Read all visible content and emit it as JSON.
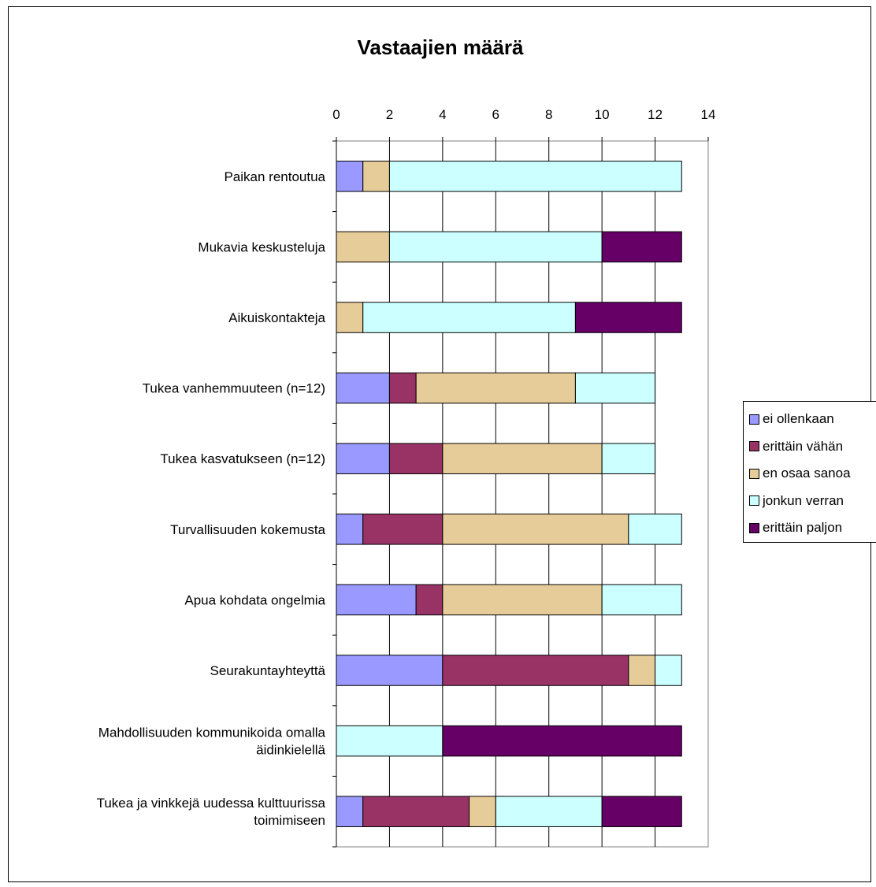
{
  "chart_data": {
    "type": "bar",
    "orientation": "horizontal",
    "stacked": true,
    "title": "Vastaajien määrä",
    "xlim": [
      0,
      14
    ],
    "x_ticks": [
      0,
      2,
      4,
      6,
      8,
      10,
      12,
      14
    ],
    "categories": [
      "Paikan rentoutua",
      "Mukavia keskusteluja",
      "Aikuiskontakteja",
      "Tukea vanhemmuuteen (n=12)",
      "Tukea kasvatukseen (n=12)",
      "Turvallisuuden kokemusta",
      "Apua kohdata ongelmia",
      "Seurakuntayhteyttä",
      "Mahdollisuuden kommunikoida omalla äidinkielellä",
      "Tukea ja vinkkejä uudessa kulttuurissa toimimiseen"
    ],
    "series": [
      {
        "name": "ei ollenkaan",
        "color": "#9999ff",
        "values": [
          1,
          0,
          0,
          2,
          2,
          1,
          3,
          4,
          0,
          1
        ]
      },
      {
        "name": "erittäin vähän",
        "color": "#993366",
        "values": [
          0,
          0,
          0,
          1,
          2,
          3,
          1,
          7,
          0,
          4
        ]
      },
      {
        "name": "en osaa sanoa",
        "color": "#e6cc99",
        "values": [
          1,
          2,
          1,
          6,
          6,
          7,
          6,
          1,
          0,
          1
        ]
      },
      {
        "name": "jonkun verran",
        "color": "#ccffff",
        "values": [
          11,
          8,
          8,
          3,
          2,
          2,
          3,
          1,
          4,
          4
        ]
      },
      {
        "name": "erittäin paljon",
        "color": "#660066",
        "values": [
          0,
          3,
          4,
          0,
          0,
          0,
          0,
          0,
          9,
          3
        ]
      }
    ],
    "legend_position": "right",
    "grid": "vertical"
  }
}
